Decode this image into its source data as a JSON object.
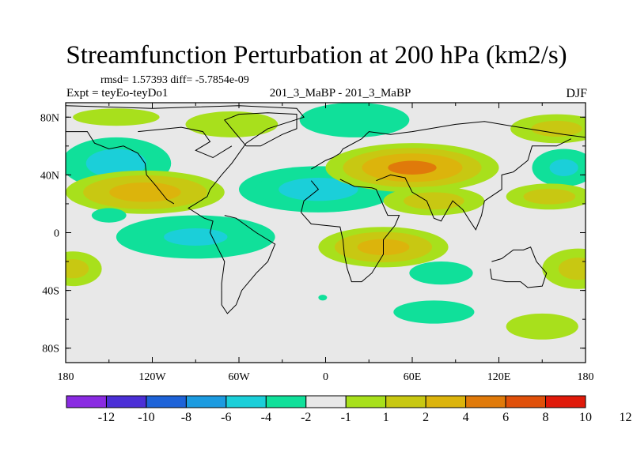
{
  "title": "Streamfunction Perturbation at 200 hPa (km2/s)",
  "stats_text": "rmsd= 1.57393 diff= -5.7854e-09",
  "experiment_label": "Expt = teyEo-teyDo1",
  "center_label": "201_3_MaBP - 201_3_MaBP",
  "season_label": "DJF",
  "colors": {
    "background": "#e8e8e8",
    "coast": "#000000",
    "palette": [
      "#8a2be2",
      "#4b2fd6",
      "#1e63d8",
      "#1c9be0",
      "#1bcfd9",
      "#10e09a",
      "#e8e8e8",
      "#a8e01c",
      "#c8c812",
      "#dcb40c",
      "#e07a0a",
      "#e0500a",
      "#e01a0a"
    ]
  },
  "chart_data": {
    "type": "contour-map",
    "variable": "streamfunction perturbation",
    "level_hpa": 200,
    "units": "km2/s",
    "projection": "cylindrical-equidistant",
    "xlim": [
      -180,
      180
    ],
    "ylim": [
      -90,
      90
    ],
    "x_ticks": [
      {
        "value": -180,
        "label": "180"
      },
      {
        "value": -120,
        "label": "120W"
      },
      {
        "value": -60,
        "label": "60W"
      },
      {
        "value": 0,
        "label": "0"
      },
      {
        "value": 60,
        "label": "60E"
      },
      {
        "value": 120,
        "label": "120E"
      },
      {
        "value": 180,
        "label": "180"
      }
    ],
    "y_ticks": [
      {
        "value": 80,
        "label": "80N"
      },
      {
        "value": 40,
        "label": "40N"
      },
      {
        "value": 0,
        "label": "0"
      },
      {
        "value": -40,
        "label": "40S"
      },
      {
        "value": -80,
        "label": "80S"
      }
    ],
    "colorbar_levels": [
      "-12",
      "-10",
      "-8",
      "-6",
      "-4",
      "-2",
      "-1",
      "1",
      "2",
      "4",
      "6",
      "8",
      "10",
      "12"
    ],
    "features": [
      {
        "name": "ne-pacific-low",
        "lon": -145,
        "lat": 48,
        "rlon": 38,
        "rlat": 18,
        "layers": [
          [
            1,
            -1
          ],
          [
            0.82,
            -2
          ],
          [
            0.55,
            -4
          ]
        ]
      },
      {
        "name": "nw-pacific-ridge",
        "lon": -145,
        "lat": 80,
        "rlon": 30,
        "rlat": 6,
        "layers": [
          [
            1,
            1
          ]
        ]
      },
      {
        "name": "arctic-canada",
        "lon": -65,
        "lat": 75,
        "rlon": 32,
        "rlat": 9,
        "layers": [
          [
            1,
            1
          ]
        ]
      },
      {
        "name": "n-atlantic-low",
        "lon": 20,
        "lat": 78,
        "rlon": 38,
        "rlat": 12,
        "layers": [
          [
            1,
            -1
          ],
          [
            0.8,
            -2
          ]
        ]
      },
      {
        "name": "na-atlantic-high",
        "lon": -125,
        "lat": 28,
        "rlon": 55,
        "rlat": 15,
        "layers": [
          [
            1,
            1
          ],
          [
            0.78,
            2
          ],
          [
            0.45,
            4
          ]
        ]
      },
      {
        "name": "n-africa-low",
        "lon": -5,
        "lat": 30,
        "rlon": 55,
        "rlat": 16,
        "layers": [
          [
            1,
            -1
          ],
          [
            0.8,
            -2
          ],
          [
            0.5,
            -4
          ]
        ]
      },
      {
        "name": "asia-high",
        "lon": 60,
        "lat": 45,
        "rlon": 60,
        "rlat": 17,
        "layers": [
          [
            1,
            1
          ],
          [
            0.8,
            2
          ],
          [
            0.58,
            4
          ],
          [
            0.28,
            6
          ]
        ]
      },
      {
        "name": "asia-high-s",
        "lon": 75,
        "lat": 22,
        "rlon": 35,
        "rlat": 10,
        "layers": [
          [
            1,
            1
          ],
          [
            0.6,
            2
          ]
        ]
      },
      {
        "name": "east-asia-ridge",
        "lon": 160,
        "lat": 72,
        "rlon": 32,
        "rlat": 10,
        "layers": [
          [
            1,
            1
          ],
          [
            0.55,
            2
          ]
        ]
      },
      {
        "name": "nw-pacific-low",
        "lon": 165,
        "lat": 45,
        "rlon": 22,
        "rlat": 13,
        "layers": [
          [
            1,
            -1
          ],
          [
            0.75,
            -2
          ],
          [
            0.45,
            -4
          ]
        ]
      },
      {
        "name": "w-pacific-high",
        "lon": 155,
        "lat": 25,
        "rlon": 30,
        "rlat": 9,
        "layers": [
          [
            1,
            1
          ],
          [
            0.6,
            2
          ]
        ]
      },
      {
        "name": "small-pacific-low",
        "lon": -150,
        "lat": 12,
        "rlon": 12,
        "rlat": 5,
        "layers": [
          [
            1,
            -1
          ]
        ]
      },
      {
        "name": "e-pacific-low",
        "lon": -90,
        "lat": -3,
        "rlon": 55,
        "rlat": 15,
        "layers": [
          [
            1,
            -1
          ],
          [
            0.75,
            -2
          ],
          [
            0.4,
            -4
          ]
        ]
      },
      {
        "name": "s-atlantic-high",
        "lon": 40,
        "lat": -10,
        "rlon": 45,
        "rlat": 14,
        "layers": [
          [
            1,
            1
          ],
          [
            0.75,
            2
          ],
          [
            0.4,
            4
          ]
        ]
      },
      {
        "name": "w-south-pacific",
        "lon": -175,
        "lat": -25,
        "rlon": 20,
        "rlat": 12,
        "layers": [
          [
            1,
            1
          ],
          [
            0.55,
            2
          ]
        ]
      },
      {
        "name": "e-south-pacific",
        "lon": 175,
        "lat": -25,
        "rlon": 25,
        "rlat": 14,
        "layers": [
          [
            1,
            1
          ],
          [
            0.55,
            2
          ]
        ]
      },
      {
        "name": "indian-ocean-low",
        "lon": 80,
        "lat": -28,
        "rlon": 22,
        "rlat": 8,
        "layers": [
          [
            1,
            -1
          ]
        ]
      },
      {
        "name": "southern-ocean-low",
        "lon": 75,
        "lat": -55,
        "rlon": 28,
        "rlat": 8,
        "layers": [
          [
            1,
            -1
          ]
        ]
      },
      {
        "name": "sw-pacific-high",
        "lon": 150,
        "lat": -65,
        "rlon": 25,
        "rlat": 9,
        "layers": [
          [
            1,
            1
          ]
        ]
      },
      {
        "name": "atlantic-small-low",
        "lon": -2,
        "lat": -45,
        "rlon": 3,
        "rlat": 2,
        "layers": [
          [
            1,
            -1
          ]
        ]
      }
    ]
  }
}
